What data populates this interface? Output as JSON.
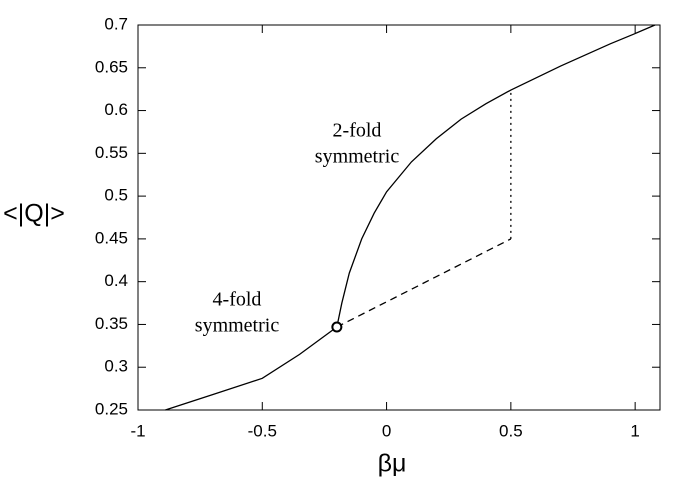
{
  "chart_data": {
    "type": "line",
    "x_label": "βμ",
    "y_label": "<|Q|>",
    "xlim": [
      -1,
      1.1
    ],
    "ylim": [
      0.25,
      0.7
    ],
    "xticks": [
      -1,
      -0.5,
      0,
      0.5,
      1
    ],
    "yticks": [
      0.25,
      0.3,
      0.35,
      0.4,
      0.45,
      0.5,
      0.55,
      0.6,
      0.65,
      0.7
    ],
    "series": [
      {
        "style": "solid",
        "color": "#000000",
        "x": [
          -0.89,
          -0.7,
          -0.5,
          -0.35,
          -0.2
        ],
        "values": [
          0.25,
          0.268,
          0.287,
          0.315,
          0.347
        ]
      },
      {
        "style": "solid",
        "color": "#000000",
        "x": [
          -0.2,
          -0.18,
          -0.15,
          -0.1,
          -0.05,
          0,
          0.1,
          0.2,
          0.3,
          0.4,
          0.5,
          0.6,
          0.7,
          0.8,
          0.9,
          1.0,
          1.08
        ],
        "values": [
          0.347,
          0.375,
          0.41,
          0.45,
          0.48,
          0.505,
          0.54,
          0.567,
          0.59,
          0.608,
          0.624,
          0.638,
          0.652,
          0.665,
          0.678,
          0.69,
          0.7
        ]
      },
      {
        "style": "dashed",
        "color": "#000000",
        "x": [
          -0.2,
          0.5
        ],
        "values": [
          0.347,
          0.45
        ]
      },
      {
        "style": "dotted",
        "color": "#000000",
        "x": [
          0.5,
          0.5
        ],
        "values": [
          0.45,
          0.624
        ]
      }
    ],
    "markers": {
      "x": [
        -0.2
      ],
      "values": [
        0.347
      ]
    },
    "annotations": [
      [
        "2-fold",
        "symmetric"
      ],
      [
        "4-fold",
        "symmetric"
      ]
    ]
  }
}
